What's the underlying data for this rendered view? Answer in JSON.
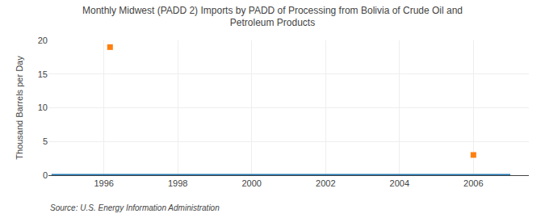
{
  "chart_data": {
    "type": "line",
    "title": "Monthly Midwest (PADD 2) Imports by PADD of Processing from Bolivia of Crude Oil and\nPetroleum Products",
    "ylabel": "Thousand Barrels per Day",
    "annotations": [
      "Source: U.S. Energy Information Administration"
    ],
    "series": [
      {
        "type": "line",
        "x": [
          1994.583,
          2007.0
        ],
        "values": [
          0,
          0
        ]
      },
      {
        "type": "scatter",
        "marker": "square",
        "x": [
          1996.167,
          2006.0
        ],
        "values": [
          19.0,
          3.0
        ]
      }
    ],
    "xlim": [
      1994.5,
      2007.5
    ],
    "xticks": [
      1996,
      1998,
      2000,
      2002,
      2004,
      2006
    ],
    "ylim": [
      0,
      20
    ],
    "yticks": [
      0,
      5,
      10,
      15,
      20
    ],
    "grid": true
  }
}
